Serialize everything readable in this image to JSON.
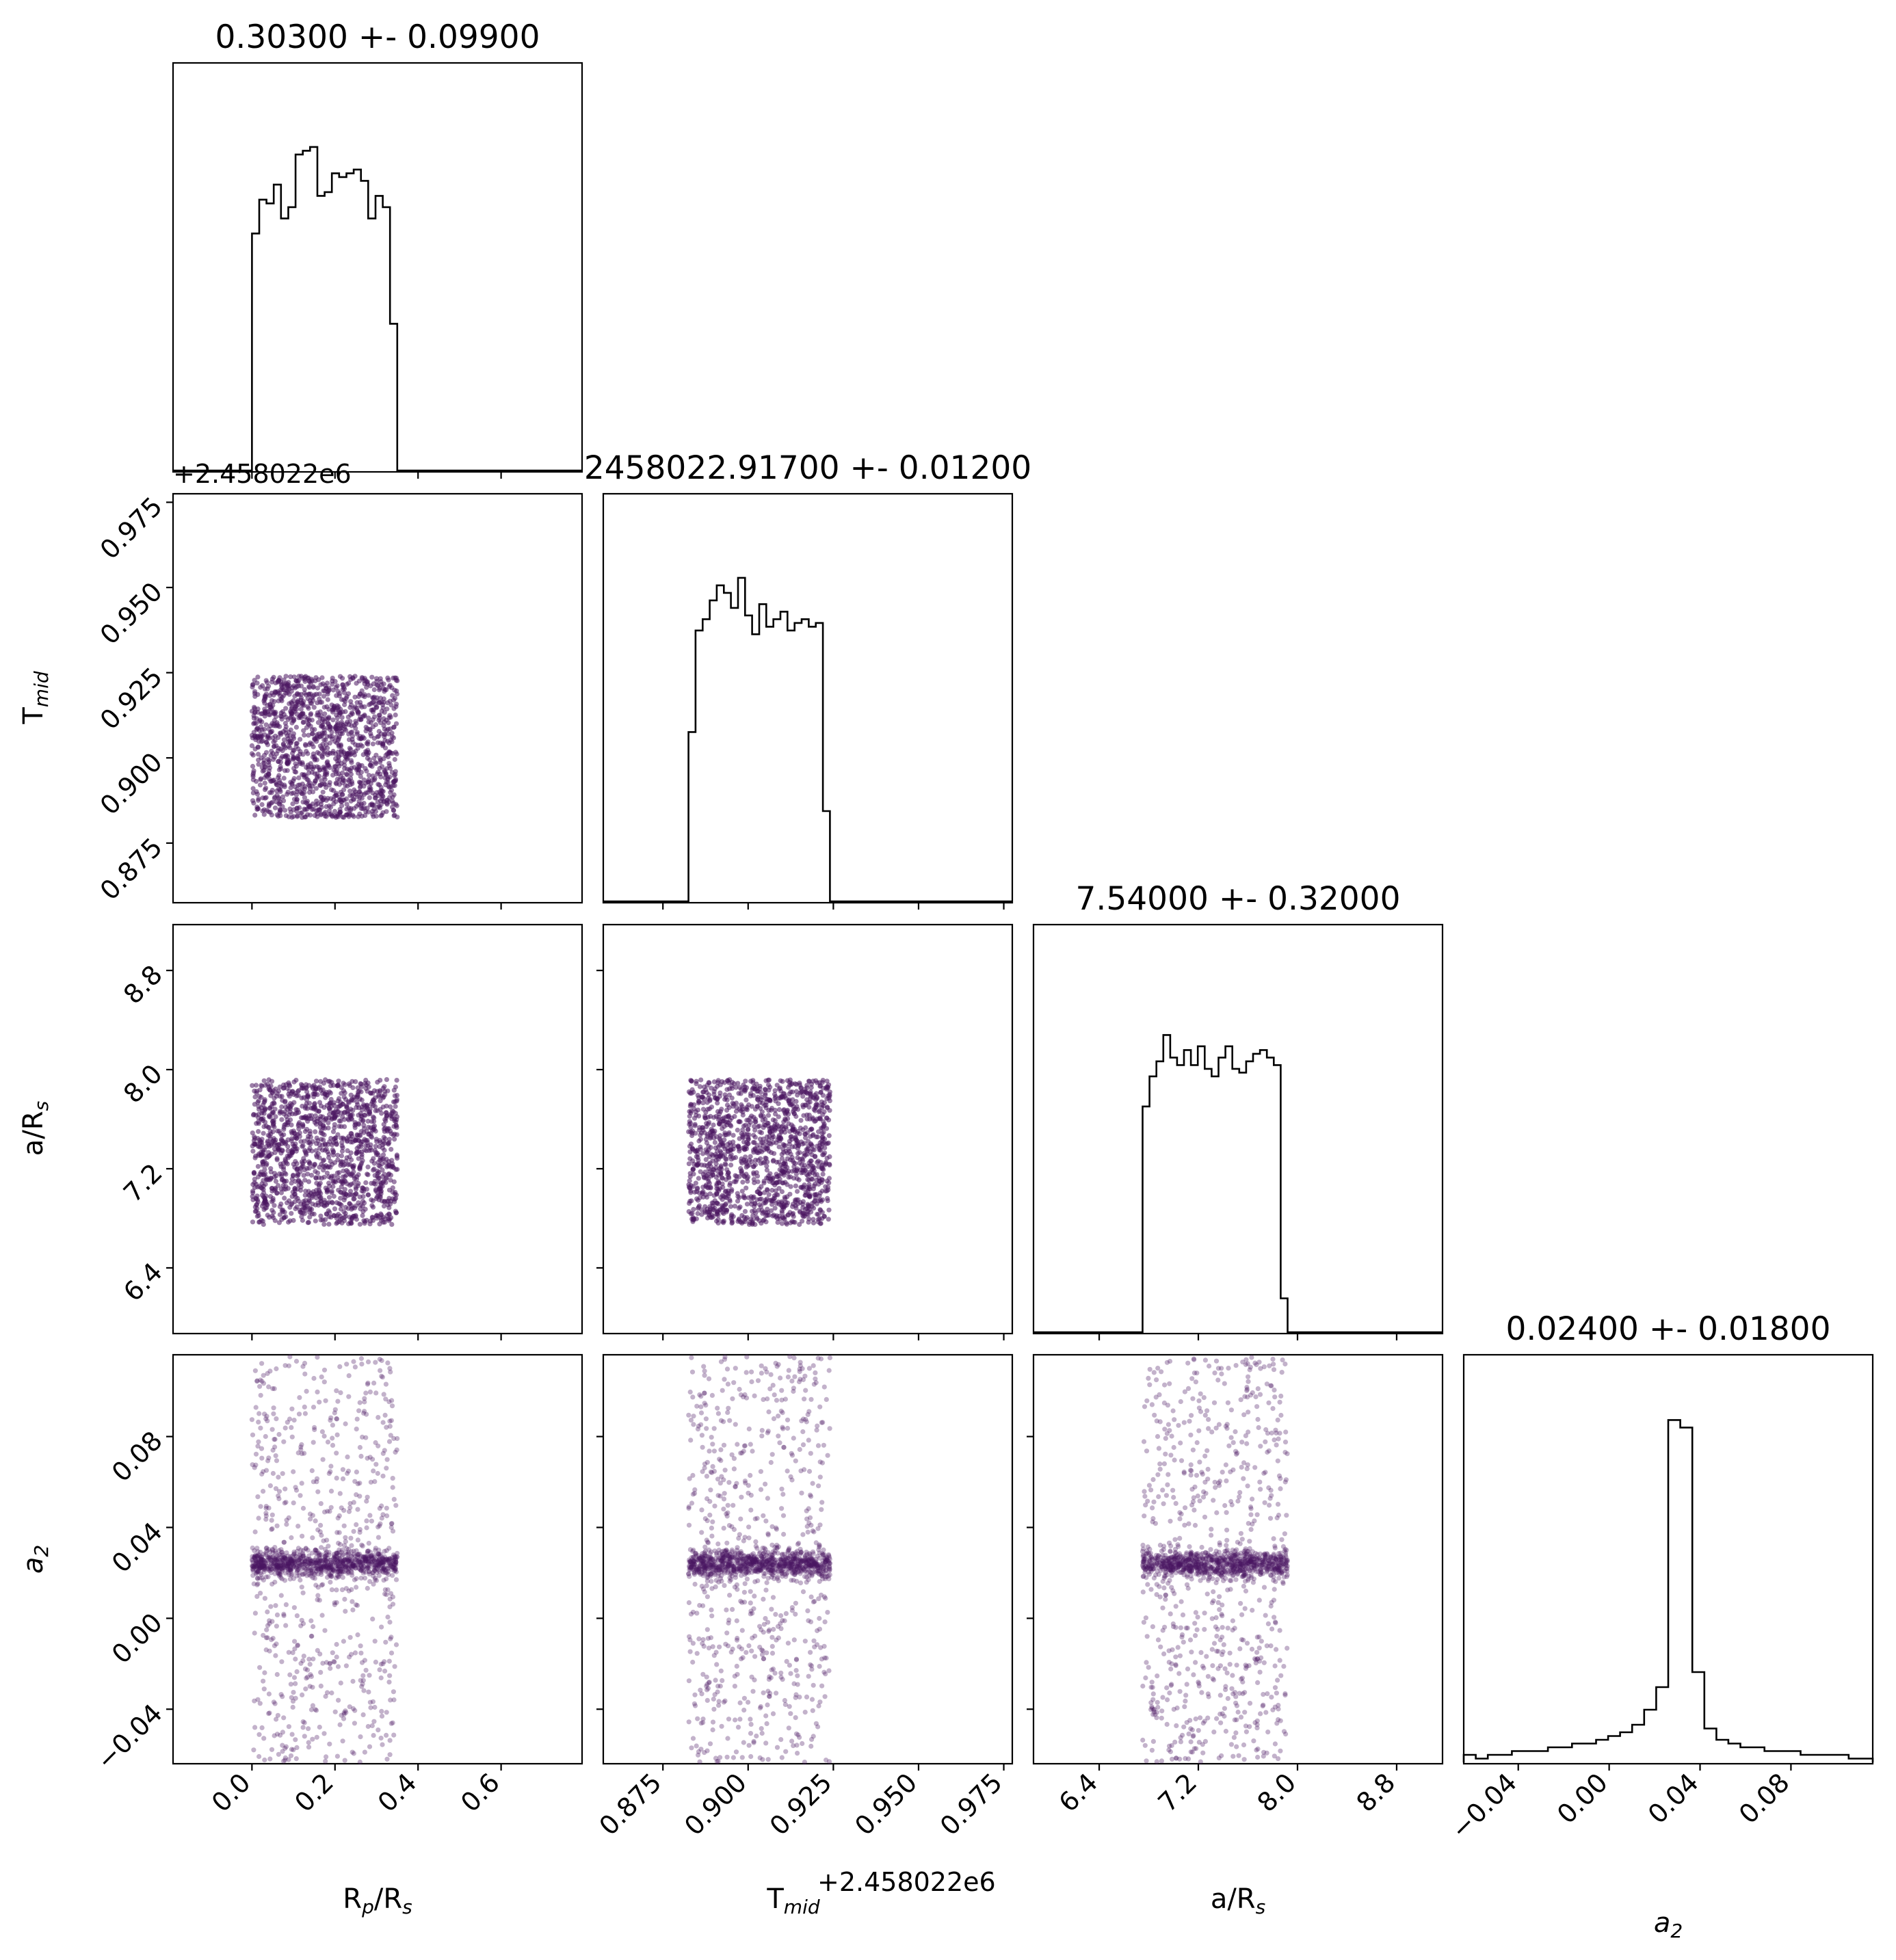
{
  "chart_data": {
    "type": "corner",
    "point_color": "#4a1560",
    "hist_color": "#000000",
    "params": [
      {
        "name": "R_p/R_s",
        "label_main": "R",
        "label_sub": "p",
        "label_tail": "/R",
        "label_sub2": "s",
        "title": "0.30300 +- 0.09900",
        "range": [
          -0.19,
          0.795
        ],
        "ticks": [
          0.0,
          0.2,
          0.4,
          0.6
        ],
        "tick_labels": [
          "0.0",
          "0.2",
          "0.4",
          "0.6"
        ],
        "uniform": [
          0.0,
          0.35
        ]
      },
      {
        "name": "T_mid",
        "label_main": "T",
        "label_sub": "mid",
        "title": "2458022.91700 +- 0.01200",
        "range": [
          0.8575,
          0.9775
        ],
        "ticks": [
          0.875,
          0.9,
          0.925,
          0.95,
          0.975
        ],
        "tick_labels": [
          "0.875",
          "0.900",
          "0.925",
          "0.950",
          "0.975"
        ],
        "offset_label": "+2.458022e6",
        "uniform": [
          0.8825,
          0.924
        ]
      },
      {
        "name": "a/R_s",
        "label_main": "a/R",
        "label_sub": "s",
        "title": "7.54000 +- 0.32000",
        "range": [
          5.87,
          9.17
        ],
        "ticks": [
          6.4,
          7.2,
          8.0,
          8.8
        ],
        "tick_labels": [
          "6.4",
          "7.2",
          "8.0",
          "8.8"
        ],
        "uniform": [
          6.75,
          7.92
        ]
      },
      {
        "name": "a_2",
        "label_main": "a",
        "label_sub": "2",
        "title": "0.02400 +- 0.01800",
        "range": [
          -0.064,
          0.116
        ],
        "ticks": [
          -0.04,
          0.0,
          0.04,
          0.08
        ],
        "tick_labels": [
          "−0.04",
          "0.00",
          "0.04",
          "0.08"
        ],
        "center": 0.024
      }
    ],
    "histograms": [
      {
        "param": 0,
        "edges": [
          0.0,
          0.35
        ],
        "counts": [
          0.63,
          0.72,
          0.71,
          0.76,
          0.67,
          0.7,
          0.84,
          0.85,
          0.86,
          0.73,
          0.74,
          0.79,
          0.78,
          0.79,
          0.8,
          0.77,
          0.67,
          0.73,
          0.7,
          0.39
        ]
      },
      {
        "param": 1,
        "edges": [
          0.8825,
          0.924
        ],
        "counts": [
          0.45,
          0.72,
          0.75,
          0.8,
          0.84,
          0.82,
          0.78,
          0.86,
          0.76,
          0.71,
          0.79,
          0.73,
          0.75,
          0.77,
          0.72,
          0.74,
          0.75,
          0.73,
          0.74,
          0.24
        ]
      },
      {
        "param": 2,
        "edges": [
          6.75,
          7.92
        ],
        "counts": [
          0.6,
          0.68,
          0.72,
          0.79,
          0.73,
          0.71,
          0.75,
          0.71,
          0.76,
          0.7,
          0.68,
          0.73,
          0.76,
          0.7,
          0.69,
          0.72,
          0.74,
          0.75,
          0.73,
          0.71,
          0.09
        ]
      },
      {
        "param": 3,
        "edges": [
          -0.064,
          0.116
        ],
        "counts": [
          0.02,
          0.01,
          0.02,
          0.02,
          0.03,
          0.03,
          0.03,
          0.04,
          0.04,
          0.05,
          0.05,
          0.06,
          0.07,
          0.08,
          0.1,
          0.14,
          0.2,
          0.91,
          0.89,
          0.24,
          0.09,
          0.06,
          0.05,
          0.04,
          0.04,
          0.03,
          0.03,
          0.03,
          0.02,
          0.02,
          0.02,
          0.02,
          0.01,
          0.01
        ]
      }
    ]
  }
}
